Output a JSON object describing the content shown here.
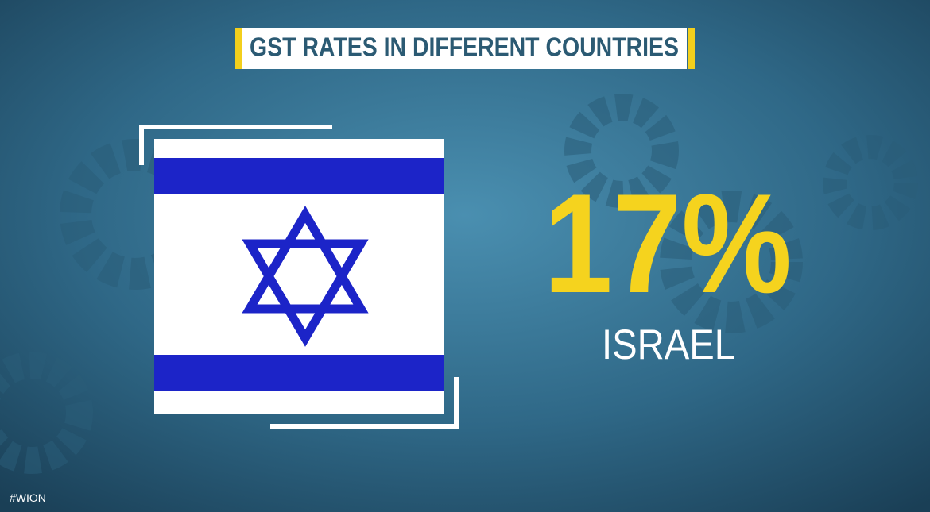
{
  "header": {
    "title": "GST RATES IN DIFFERENT COUNTRIES"
  },
  "card": {
    "rate": "17%",
    "country": "ISRAEL"
  },
  "footer": {
    "hashtag": "#WION"
  }
}
